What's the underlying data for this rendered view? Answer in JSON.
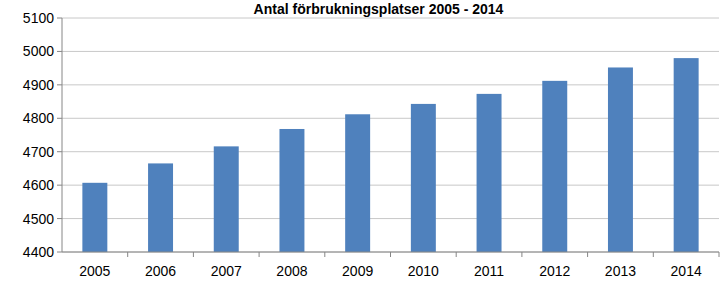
{
  "chart_data": {
    "type": "bar",
    "title": "Antal förbrukningsplatser 2005 - 2014",
    "categories": [
      "2005",
      "2006",
      "2007",
      "2008",
      "2009",
      "2010",
      "2011",
      "2012",
      "2013",
      "2014"
    ],
    "values": [
      4607,
      4665,
      4716,
      4768,
      4812,
      4843,
      4873,
      4912,
      4952,
      4980
    ],
    "color": "#4f81bd",
    "ylim": [
      4400,
      5100
    ],
    "yticks": [
      4400,
      4500,
      4600,
      4700,
      4800,
      4900,
      5000,
      5100
    ],
    "grid": true
  }
}
